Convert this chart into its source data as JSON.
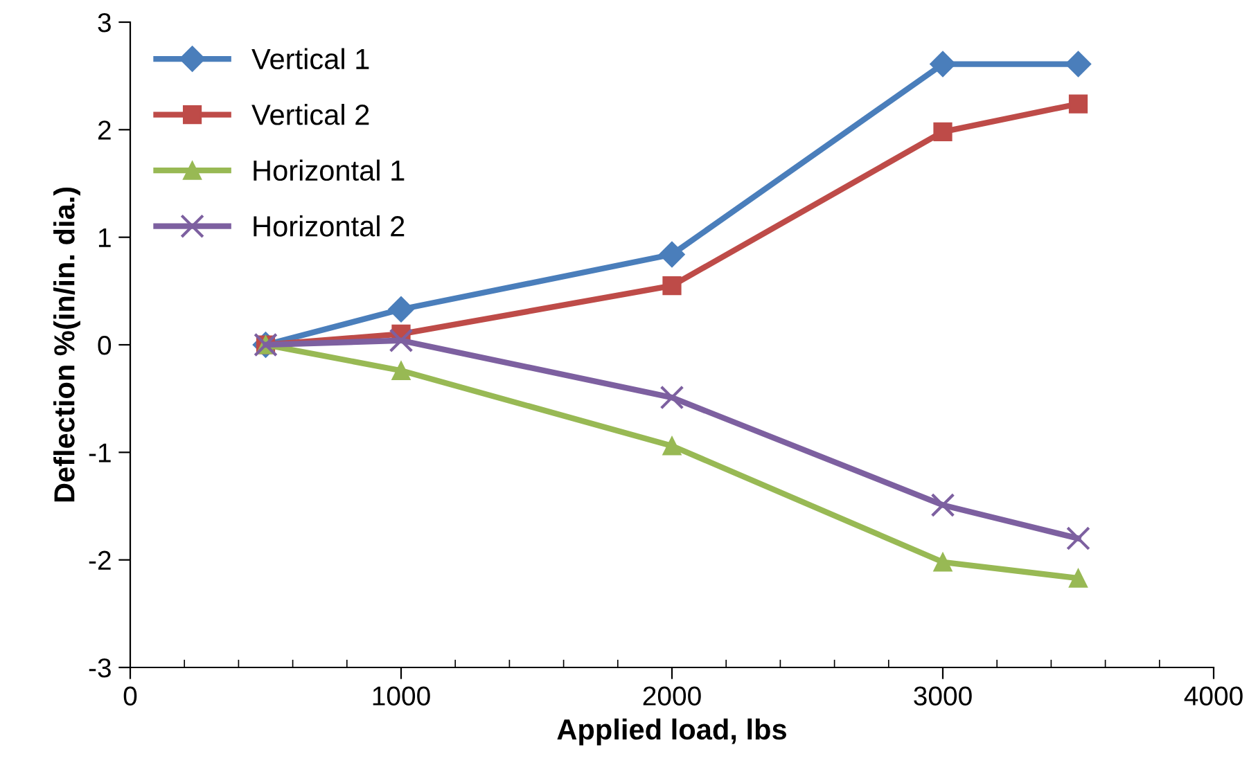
{
  "chart_data": {
    "type": "line",
    "xlabel": "Applied load, lbs",
    "ylabel": "Deflection %(in/in. dia.)",
    "x": [
      500,
      1000,
      2000,
      3000,
      3500
    ],
    "series": [
      {
        "name": "Vertical 1",
        "color": "#4a7ebb",
        "marker": "diamond",
        "values": [
          0,
          0.33,
          0.84,
          2.61,
          2.61
        ]
      },
      {
        "name": "Vertical 2",
        "color": "#be4b48",
        "marker": "square",
        "values": [
          0,
          0.1,
          0.55,
          1.98,
          2.24
        ]
      },
      {
        "name": "Horizontal 1",
        "color": "#98b954",
        "marker": "triangle",
        "values": [
          0,
          -0.24,
          -0.94,
          -2.02,
          -2.17
        ]
      },
      {
        "name": "Horizontal 2",
        "color": "#7d60a0",
        "marker": "cross",
        "values": [
          0,
          0.04,
          -0.49,
          -1.49,
          -1.8
        ]
      }
    ],
    "xlim": [
      0,
      4000
    ],
    "xticks": [
      0,
      1000,
      2000,
      3000,
      4000
    ],
    "ylim": [
      -3,
      3
    ],
    "yticks": [
      -3,
      -2,
      -1,
      0,
      1,
      2,
      3
    ],
    "grid": false,
    "legend": "top left",
    "line_style": "solid"
  }
}
